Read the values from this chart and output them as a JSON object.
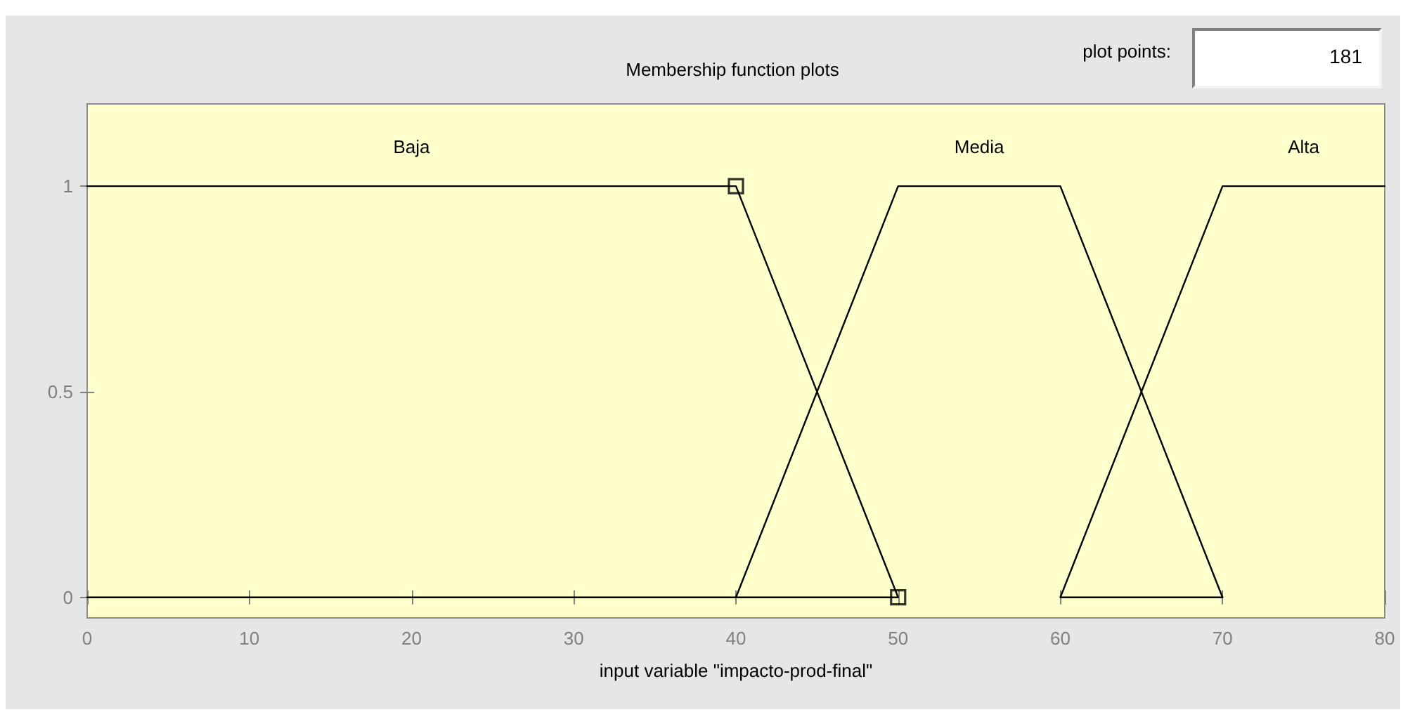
{
  "chart_data": {
    "type": "line",
    "title": "Membership function plots",
    "xlabel": "input variable \"impacto-prod-final\"",
    "annotations": [
      "plot points:",
      "181"
    ],
    "xlim": [
      0,
      80
    ],
    "xticks": [
      0,
      10,
      20,
      30,
      40,
      50,
      60,
      70,
      80
    ],
    "ylim": [
      -0.05,
      1.2
    ],
    "yticks": [
      0,
      0.5,
      1
    ],
    "line_style": "solid",
    "series": [
      {
        "name": "Baja",
        "color": "#000000",
        "x": [
          0,
          40,
          50,
          0
        ],
        "values": [
          1,
          1,
          0,
          0
        ]
      },
      {
        "name": "Media",
        "color": "#000000",
        "x": [
          40,
          50,
          60,
          70
        ],
        "values": [
          0,
          1,
          1,
          0
        ]
      },
      {
        "name": "Alta",
        "color": "#000000",
        "x": [
          70,
          60,
          70,
          80
        ],
        "values": [
          0,
          0,
          1,
          1
        ]
      },
      {
        "type": "scatter",
        "marker": "square",
        "color": "#000000",
        "x": [
          40,
          50
        ],
        "values": [
          1,
          0
        ]
      }
    ]
  }
}
